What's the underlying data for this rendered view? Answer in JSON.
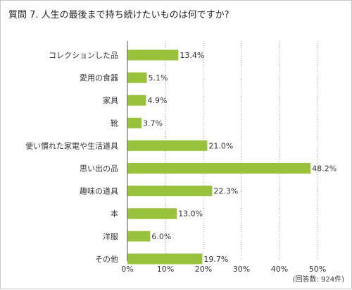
{
  "title": "質問 7. 人生の最後まで持ち続けたいものは何ですか?",
  "note": "(回答数: 924件)",
  "colors": {
    "bar": "#99c23c",
    "grid": "#999999",
    "axis": "#555555"
  },
  "chart_data": {
    "type": "bar",
    "orientation": "horizontal",
    "title": "質問 7. 人生の最後まで持ち続けたいものは何ですか?",
    "categories": [
      "コレクションした品",
      "愛用の食器",
      "家具",
      "靴",
      "使い慣れた家電や生活道具",
      "思い出の品",
      "趣味の道具",
      "本",
      "洋服",
      "その他"
    ],
    "values": [
      13.4,
      5.1,
      4.9,
      3.7,
      21.0,
      48.2,
      22.3,
      13.0,
      6.0,
      19.7
    ],
    "value_labels": [
      "13.4%",
      "5.1%",
      "4.9%",
      "3.7%",
      "21.0%",
      "48.2%",
      "22.3%",
      "13.0%",
      "6.0%",
      "19.7%"
    ],
    "xlim": [
      0,
      50
    ],
    "x_ticks": [
      "0%",
      "10%",
      "20%",
      "30%",
      "40%",
      "50%"
    ],
    "grid": "vertical dotted"
  }
}
